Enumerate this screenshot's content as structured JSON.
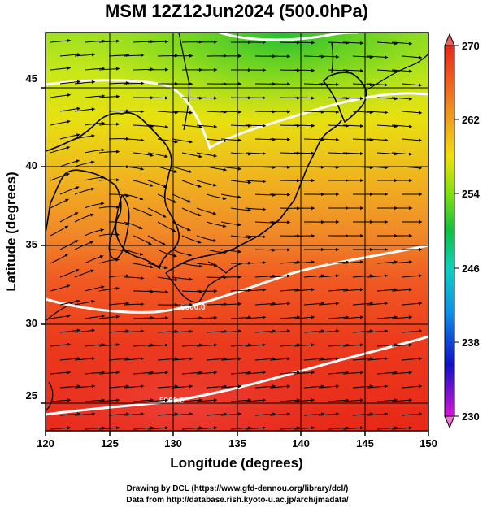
{
  "title": "MSM 12Z12Jun2024 (500.0hPa)",
  "xlabel": "Longitude (degrees)",
  "ylabel": "Latitude  (degrees)",
  "x_ticks": [
    120,
    125,
    130,
    135,
    140,
    145,
    150
  ],
  "y_ticks": [
    25,
    30,
    35,
    40,
    45
  ],
  "xlim": [
    120,
    150
  ],
  "ylim": [
    22.4,
    47.6
  ],
  "colorbar": {
    "ticks": [
      270,
      262,
      254,
      246,
      238,
      230
    ],
    "min": 230,
    "max": 270,
    "colors": [
      "#d816d8",
      "#1010c8",
      "#1090e8",
      "#10d0c0",
      "#10c040",
      "#80e010",
      "#f0e010",
      "#f0a020",
      "#f06020",
      "#e82818"
    ]
  },
  "contours": [
    {
      "label": "5900.0"
    },
    {
      "label": "5800.0"
    }
  ],
  "credits": {
    "line1": "Drawing by DCL (https://www.gfd-dennou.org/library/dcl/)",
    "line2": "Data from http://database.rish.kyoto-u.ac.jp/arch/jmadata/"
  }
}
